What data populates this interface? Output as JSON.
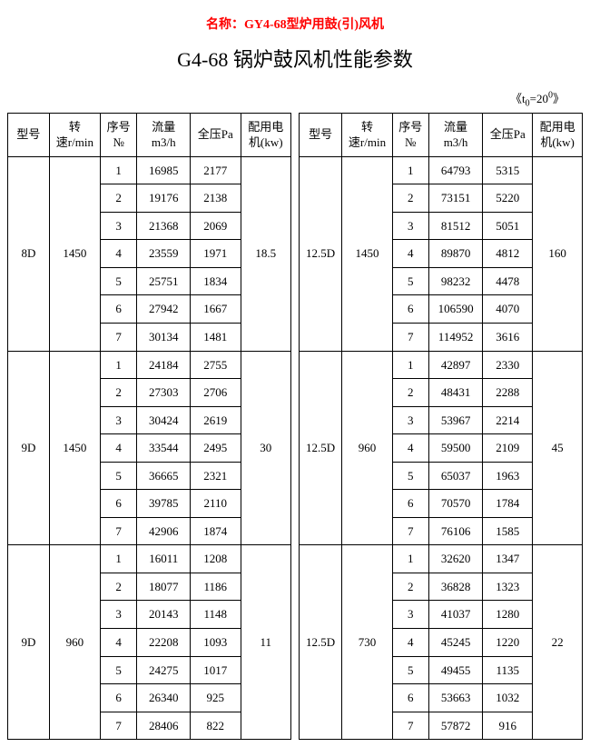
{
  "product_name_label": "名称：",
  "product_name": "GY4-68型炉用鼓(引)风机",
  "title": "G4-68 锅炉鼓风机性能参数",
  "note_prefix": "《t",
  "note_sub": "0",
  "note_mid": "=20",
  "note_sup": "0",
  "note_suffix": "》",
  "headers": {
    "model": "型号",
    "speed_top": "转",
    "speed_bot": "速r/min",
    "seq_top": "序号",
    "seq_bot": "№",
    "flow_top": "流量",
    "flow_bot": "m3/h",
    "press": "全压Pa",
    "power_top": "配用电",
    "power_bot": "机(kw)"
  },
  "groups_left": [
    {
      "model": "8D",
      "speed": "1450",
      "power": "18.5",
      "rows": [
        {
          "seq": "1",
          "flow": "16985",
          "press": "2177"
        },
        {
          "seq": "2",
          "flow": "19176",
          "press": "2138"
        },
        {
          "seq": "3",
          "flow": "21368",
          "press": "2069"
        },
        {
          "seq": "4",
          "flow": "23559",
          "press": "1971"
        },
        {
          "seq": "5",
          "flow": "25751",
          "press": "1834"
        },
        {
          "seq": "6",
          "flow": "27942",
          "press": "1667"
        },
        {
          "seq": "7",
          "flow": "30134",
          "press": "1481"
        }
      ]
    },
    {
      "model": "9D",
      "speed": "1450",
      "power": "30",
      "rows": [
        {
          "seq": "1",
          "flow": "24184",
          "press": "2755"
        },
        {
          "seq": "2",
          "flow": "27303",
          "press": "2706"
        },
        {
          "seq": "3",
          "flow": "30424",
          "press": "2619"
        },
        {
          "seq": "4",
          "flow": "33544",
          "press": "2495"
        },
        {
          "seq": "5",
          "flow": "36665",
          "press": "2321"
        },
        {
          "seq": "6",
          "flow": "39785",
          "press": "2110"
        },
        {
          "seq": "7",
          "flow": "42906",
          "press": "1874"
        }
      ]
    },
    {
      "model": "9D",
      "speed": "960",
      "power": "11",
      "rows": [
        {
          "seq": "1",
          "flow": "16011",
          "press": "1208"
        },
        {
          "seq": "2",
          "flow": "18077",
          "press": "1186"
        },
        {
          "seq": "3",
          "flow": "20143",
          "press": "1148"
        },
        {
          "seq": "4",
          "flow": "22208",
          "press": "1093"
        },
        {
          "seq": "5",
          "flow": "24275",
          "press": "1017"
        },
        {
          "seq": "6",
          "flow": "26340",
          "press": "925"
        },
        {
          "seq": "7",
          "flow": "28406",
          "press": "822"
        }
      ]
    }
  ],
  "groups_right": [
    {
      "model": "12.5D",
      "speed": "1450",
      "power": "160",
      "rows": [
        {
          "seq": "1",
          "flow": "64793",
          "press": "5315"
        },
        {
          "seq": "2",
          "flow": "73151",
          "press": "5220"
        },
        {
          "seq": "3",
          "flow": "81512",
          "press": "5051"
        },
        {
          "seq": "4",
          "flow": "89870",
          "press": "4812"
        },
        {
          "seq": "5",
          "flow": "98232",
          "press": "4478"
        },
        {
          "seq": "6",
          "flow": "106590",
          "press": "4070"
        },
        {
          "seq": "7",
          "flow": "114952",
          "press": "3616"
        }
      ]
    },
    {
      "model": "12.5D",
      "speed": "960",
      "power": "45",
      "rows": [
        {
          "seq": "1",
          "flow": "42897",
          "press": "2330"
        },
        {
          "seq": "2",
          "flow": "48431",
          "press": "2288"
        },
        {
          "seq": "3",
          "flow": "53967",
          "press": "2214"
        },
        {
          "seq": "4",
          "flow": "59500",
          "press": "2109"
        },
        {
          "seq": "5",
          "flow": "65037",
          "press": "1963"
        },
        {
          "seq": "6",
          "flow": "70570",
          "press": "1784"
        },
        {
          "seq": "7",
          "flow": "76106",
          "press": "1585"
        }
      ]
    },
    {
      "model": "12.5D",
      "speed": "730",
      "power": "22",
      "rows": [
        {
          "seq": "1",
          "flow": "32620",
          "press": "1347"
        },
        {
          "seq": "2",
          "flow": "36828",
          "press": "1323"
        },
        {
          "seq": "3",
          "flow": "41037",
          "press": "1280"
        },
        {
          "seq": "4",
          "flow": "45245",
          "press": "1220"
        },
        {
          "seq": "5",
          "flow": "49455",
          "press": "1135"
        },
        {
          "seq": "6",
          "flow": "53663",
          "press": "1032"
        },
        {
          "seq": "7",
          "flow": "57872",
          "press": "916"
        }
      ]
    }
  ]
}
